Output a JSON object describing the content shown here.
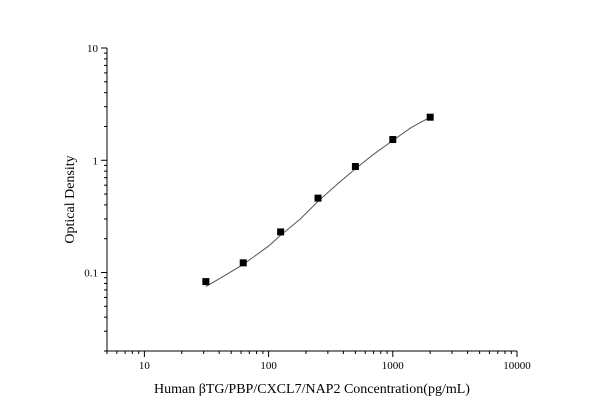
{
  "chart_data": {
    "type": "scatter",
    "xlabel": "Human βTG/PBP/CXCL7/NAP2 Concentration(pg/mL)",
    "ylabel": "Optical Density",
    "xscale": "log",
    "yscale": "log",
    "xlim": [
      5,
      10000
    ],
    "ylim": [
      0.02,
      10
    ],
    "x_ticks": [
      10,
      100,
      1000,
      10000
    ],
    "x_tick_labels": [
      "10",
      "100",
      "1000",
      "10000"
    ],
    "y_ticks": [
      0.1,
      1,
      10
    ],
    "y_tick_labels": [
      "0.1",
      "1",
      "10"
    ],
    "grid": false,
    "marker": "square",
    "line_color": "#555555",
    "marker_color": "#000000",
    "series": [
      {
        "x": [
          31.25,
          62.5,
          125,
          250,
          500,
          1000,
          2000
        ],
        "y": [
          0.083,
          0.122,
          0.23,
          0.46,
          0.88,
          1.53,
          2.42
        ]
      }
    ],
    "fit_curve": {
      "x": [
        31.25,
        40,
        62.5,
        100,
        125,
        180,
        250,
        350,
        500,
        700,
        1000,
        1400,
        2000
      ],
      "y": [
        0.075,
        0.088,
        0.118,
        0.172,
        0.215,
        0.3,
        0.43,
        0.6,
        0.84,
        1.13,
        1.5,
        1.95,
        2.42
      ]
    }
  }
}
